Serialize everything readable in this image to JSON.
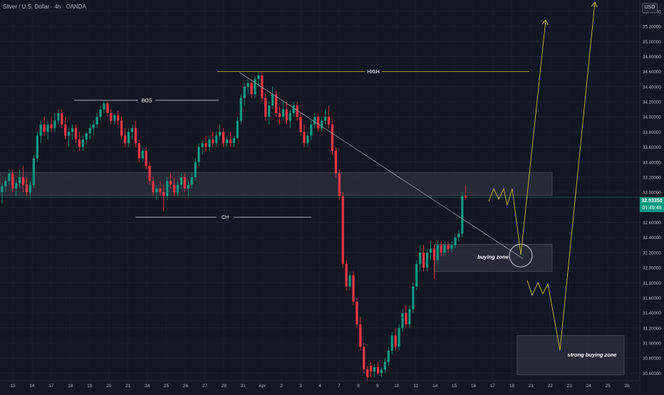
{
  "header": {
    "title": "Silver / U.S. Dollar · 4h · OANDA",
    "currency": "USD"
  },
  "price_tag": {
    "price": "32.93350",
    "countdown": "01:49:48"
  },
  "colors": {
    "background": "#131722",
    "up": "#089981",
    "down": "#f23645",
    "zone_fill": "#363a45",
    "annotation": "#c9b93a",
    "trendline": "#9598a1",
    "axis_text": "#b2b5be",
    "level_line": "#2a8a6f"
  },
  "chart_data": {
    "type": "candlestick",
    "title": "Silver / U.S. Dollar · 4h · OANDA",
    "x_ticks": [
      "13",
      "14",
      "17",
      "18",
      "19",
      "20",
      "21",
      "24",
      "25",
      "26",
      "27",
      "28",
      "31",
      "Apr",
      "2",
      "3",
      "4",
      "7",
      "8",
      "9",
      "10",
      "11",
      "14",
      "15",
      "16",
      "17",
      "18",
      "21",
      "22",
      "23",
      "24",
      "25",
      "28"
    ],
    "y_ticks": [
      "35.40000",
      "35.20000",
      "35.00000",
      "34.80000",
      "34.60000",
      "34.40000",
      "34.20000",
      "34.00000",
      "33.80000",
      "33.60000",
      "33.40000",
      "33.20000",
      "33.00000",
      "32.80000",
      "32.60000",
      "32.40000",
      "32.20000",
      "32.00000",
      "31.80000",
      "31.60000",
      "31.40000",
      "31.20000",
      "31.00000",
      "30.80000",
      "30.60000"
    ],
    "y_range": [
      30.5,
      35.55
    ],
    "current_price": 32.9335,
    "levels": [
      {
        "label": "HIGH",
        "price": 34.6
      },
      {
        "label": "BOS",
        "price": 34.22
      },
      {
        "label": "CH",
        "price": 32.67
      }
    ],
    "zones": [
      {
        "label": "",
        "top": 33.26,
        "bottom": 32.96
      },
      {
        "label": "buying zone",
        "top": 32.31,
        "bottom": 31.95
      },
      {
        "label": "strong buying zone",
        "top": 31.1,
        "bottom": 30.58
      }
    ],
    "candles": [
      {
        "o": 33.0,
        "h": 33.12,
        "l": 32.85,
        "c": 33.08
      },
      {
        "o": 33.08,
        "h": 33.2,
        "l": 33.0,
        "c": 33.15
      },
      {
        "o": 33.15,
        "h": 33.3,
        "l": 33.1,
        "c": 33.25
      },
      {
        "o": 33.25,
        "h": 33.3,
        "l": 33.0,
        "c": 33.05
      },
      {
        "o": 33.05,
        "h": 33.15,
        "l": 32.95,
        "c": 33.12
      },
      {
        "o": 33.12,
        "h": 33.3,
        "l": 33.05,
        "c": 33.2
      },
      {
        "o": 33.2,
        "h": 33.35,
        "l": 33.0,
        "c": 33.1
      },
      {
        "o": 33.1,
        "h": 33.2,
        "l": 32.95,
        "c": 33.0
      },
      {
        "o": 33.0,
        "h": 33.15,
        "l": 32.9,
        "c": 33.1
      },
      {
        "o": 33.1,
        "h": 33.5,
        "l": 33.05,
        "c": 33.45
      },
      {
        "o": 33.45,
        "h": 33.8,
        "l": 33.4,
        "c": 33.75
      },
      {
        "o": 33.75,
        "h": 33.95,
        "l": 33.65,
        "c": 33.9
      },
      {
        "o": 33.9,
        "h": 34.0,
        "l": 33.75,
        "c": 33.8
      },
      {
        "o": 33.8,
        "h": 33.95,
        "l": 33.7,
        "c": 33.9
      },
      {
        "o": 33.9,
        "h": 34.0,
        "l": 33.8,
        "c": 33.85
      },
      {
        "o": 33.85,
        "h": 34.05,
        "l": 33.8,
        "c": 33.95
      },
      {
        "o": 33.95,
        "h": 34.1,
        "l": 33.9,
        "c": 34.05
      },
      {
        "o": 34.05,
        "h": 34.1,
        "l": 33.85,
        "c": 33.9
      },
      {
        "o": 33.9,
        "h": 34.0,
        "l": 33.7,
        "c": 33.75
      },
      {
        "o": 33.75,
        "h": 33.85,
        "l": 33.6,
        "c": 33.8
      },
      {
        "o": 33.8,
        "h": 33.9,
        "l": 33.7,
        "c": 33.85
      },
      {
        "o": 33.85,
        "h": 33.9,
        "l": 33.65,
        "c": 33.7
      },
      {
        "o": 33.7,
        "h": 33.8,
        "l": 33.55,
        "c": 33.6
      },
      {
        "o": 33.6,
        "h": 33.75,
        "l": 33.55,
        "c": 33.7
      },
      {
        "o": 33.7,
        "h": 33.8,
        "l": 33.65,
        "c": 33.78
      },
      {
        "o": 33.78,
        "h": 33.9,
        "l": 33.7,
        "c": 33.85
      },
      {
        "o": 33.85,
        "h": 33.95,
        "l": 33.75,
        "c": 33.9
      },
      {
        "o": 33.9,
        "h": 34.05,
        "l": 33.85,
        "c": 34.0
      },
      {
        "o": 34.0,
        "h": 34.15,
        "l": 33.95,
        "c": 34.1
      },
      {
        "o": 34.1,
        "h": 34.22,
        "l": 34.05,
        "c": 34.18
      },
      {
        "o": 34.18,
        "h": 34.22,
        "l": 34.0,
        "c": 34.05
      },
      {
        "o": 34.05,
        "h": 34.1,
        "l": 33.9,
        "c": 33.95
      },
      {
        "o": 33.95,
        "h": 34.05,
        "l": 33.9,
        "c": 34.02
      },
      {
        "o": 34.02,
        "h": 34.08,
        "l": 33.9,
        "c": 33.95
      },
      {
        "o": 33.95,
        "h": 34.0,
        "l": 33.7,
        "c": 33.75
      },
      {
        "o": 33.75,
        "h": 33.85,
        "l": 33.6,
        "c": 33.65
      },
      {
        "o": 33.65,
        "h": 33.85,
        "l": 33.6,
        "c": 33.8
      },
      {
        "o": 33.8,
        "h": 33.9,
        "l": 33.7,
        "c": 33.85
      },
      {
        "o": 33.85,
        "h": 33.95,
        "l": 33.6,
        "c": 33.65
      },
      {
        "o": 33.65,
        "h": 33.7,
        "l": 33.4,
        "c": 33.45
      },
      {
        "o": 33.45,
        "h": 33.6,
        "l": 33.4,
        "c": 33.55
      },
      {
        "o": 33.55,
        "h": 33.6,
        "l": 33.3,
        "c": 33.35
      },
      {
        "o": 33.35,
        "h": 33.4,
        "l": 33.1,
        "c": 33.15
      },
      {
        "o": 33.15,
        "h": 33.2,
        "l": 32.95,
        "c": 33.0
      },
      {
        "o": 33.0,
        "h": 33.1,
        "l": 32.9,
        "c": 33.05
      },
      {
        "o": 33.05,
        "h": 33.15,
        "l": 32.95,
        "c": 33.0
      },
      {
        "o": 33.0,
        "h": 33.1,
        "l": 32.75,
        "c": 32.95
      },
      {
        "o": 32.95,
        "h": 33.2,
        "l": 32.9,
        "c": 33.15
      },
      {
        "o": 33.15,
        "h": 33.25,
        "l": 33.05,
        "c": 33.1
      },
      {
        "o": 33.1,
        "h": 33.2,
        "l": 32.95,
        "c": 33.0
      },
      {
        "o": 33.0,
        "h": 33.15,
        "l": 32.95,
        "c": 33.1
      },
      {
        "o": 33.1,
        "h": 33.25,
        "l": 33.05,
        "c": 33.2
      },
      {
        "o": 33.2,
        "h": 33.25,
        "l": 33.0,
        "c": 33.05
      },
      {
        "o": 33.05,
        "h": 33.15,
        "l": 32.95,
        "c": 33.1
      },
      {
        "o": 33.1,
        "h": 33.25,
        "l": 33.05,
        "c": 33.2
      },
      {
        "o": 33.2,
        "h": 33.45,
        "l": 33.15,
        "c": 33.4
      },
      {
        "o": 33.4,
        "h": 33.65,
        "l": 33.35,
        "c": 33.6
      },
      {
        "o": 33.6,
        "h": 33.7,
        "l": 33.5,
        "c": 33.65
      },
      {
        "o": 33.65,
        "h": 33.75,
        "l": 33.55,
        "c": 33.6
      },
      {
        "o": 33.6,
        "h": 33.75,
        "l": 33.55,
        "c": 33.7
      },
      {
        "o": 33.7,
        "h": 33.8,
        "l": 33.6,
        "c": 33.65
      },
      {
        "o": 33.65,
        "h": 33.8,
        "l": 33.6,
        "c": 33.75
      },
      {
        "o": 33.75,
        "h": 33.9,
        "l": 33.7,
        "c": 33.8
      },
      {
        "o": 33.8,
        "h": 33.85,
        "l": 33.6,
        "c": 33.65
      },
      {
        "o": 33.65,
        "h": 33.75,
        "l": 33.6,
        "c": 33.7
      },
      {
        "o": 33.7,
        "h": 33.8,
        "l": 33.6,
        "c": 33.65
      },
      {
        "o": 33.65,
        "h": 33.75,
        "l": 33.6,
        "c": 33.72
      },
      {
        "o": 33.72,
        "h": 34.0,
        "l": 33.7,
        "c": 33.95
      },
      {
        "o": 33.95,
        "h": 34.3,
        "l": 33.9,
        "c": 34.25
      },
      {
        "o": 34.25,
        "h": 34.45,
        "l": 34.15,
        "c": 34.4
      },
      {
        "o": 34.4,
        "h": 34.5,
        "l": 34.3,
        "c": 34.45
      },
      {
        "o": 34.45,
        "h": 34.5,
        "l": 34.25,
        "c": 34.3
      },
      {
        "o": 34.3,
        "h": 34.55,
        "l": 34.25,
        "c": 34.5
      },
      {
        "o": 34.5,
        "h": 34.6,
        "l": 34.4,
        "c": 34.55
      },
      {
        "o": 34.55,
        "h": 34.6,
        "l": 34.2,
        "c": 34.25
      },
      {
        "o": 34.25,
        "h": 34.3,
        "l": 33.95,
        "c": 34.0
      },
      {
        "o": 34.0,
        "h": 34.2,
        "l": 33.9,
        "c": 34.15
      },
      {
        "o": 34.15,
        "h": 34.4,
        "l": 34.1,
        "c": 34.3
      },
      {
        "o": 34.3,
        "h": 34.35,
        "l": 34.0,
        "c": 34.05
      },
      {
        "o": 34.05,
        "h": 34.15,
        "l": 33.9,
        "c": 34.0
      },
      {
        "o": 34.0,
        "h": 34.2,
        "l": 33.95,
        "c": 34.1
      },
      {
        "o": 34.1,
        "h": 34.2,
        "l": 33.9,
        "c": 33.95
      },
      {
        "o": 33.95,
        "h": 34.1,
        "l": 33.85,
        "c": 34.05
      },
      {
        "o": 34.05,
        "h": 34.2,
        "l": 34.0,
        "c": 34.15
      },
      {
        "o": 34.15,
        "h": 34.2,
        "l": 33.95,
        "c": 34.0
      },
      {
        "o": 34.0,
        "h": 34.05,
        "l": 33.75,
        "c": 33.8
      },
      {
        "o": 33.8,
        "h": 33.9,
        "l": 33.6,
        "c": 33.65
      },
      {
        "o": 33.65,
        "h": 33.8,
        "l": 33.6,
        "c": 33.75
      },
      {
        "o": 33.75,
        "h": 33.95,
        "l": 33.7,
        "c": 33.9
      },
      {
        "o": 33.9,
        "h": 34.05,
        "l": 33.85,
        "c": 34.0
      },
      {
        "o": 34.0,
        "h": 34.05,
        "l": 33.8,
        "c": 33.85
      },
      {
        "o": 33.85,
        "h": 34.0,
        "l": 33.8,
        "c": 33.95
      },
      {
        "o": 33.95,
        "h": 34.1,
        "l": 33.9,
        "c": 34.0
      },
      {
        "o": 34.0,
        "h": 34.15,
        "l": 33.85,
        "c": 33.9
      },
      {
        "o": 33.9,
        "h": 33.95,
        "l": 33.5,
        "c": 33.55
      },
      {
        "o": 33.55,
        "h": 33.6,
        "l": 33.2,
        "c": 33.25
      },
      {
        "o": 33.25,
        "h": 33.3,
        "l": 32.9,
        "c": 32.95
      },
      {
        "o": 32.95,
        "h": 33.0,
        "l": 32.0,
        "c": 32.05
      },
      {
        "o": 32.05,
        "h": 32.1,
        "l": 31.7,
        "c": 31.75
      },
      {
        "o": 31.75,
        "h": 31.95,
        "l": 31.7,
        "c": 31.9
      },
      {
        "o": 31.9,
        "h": 31.95,
        "l": 31.5,
        "c": 31.55
      },
      {
        "o": 31.55,
        "h": 31.6,
        "l": 31.2,
        "c": 31.25
      },
      {
        "o": 31.25,
        "h": 31.35,
        "l": 30.9,
        "c": 30.95
      },
      {
        "o": 30.95,
        "h": 31.0,
        "l": 30.6,
        "c": 30.65
      },
      {
        "o": 30.65,
        "h": 30.7,
        "l": 30.5,
        "c": 30.55
      },
      {
        "o": 30.7,
        "h": 30.75,
        "l": 30.55,
        "c": 30.62
      },
      {
        "o": 30.62,
        "h": 30.72,
        "l": 30.55,
        "c": 30.68
      },
      {
        "o": 30.68,
        "h": 30.75,
        "l": 30.58,
        "c": 30.6
      },
      {
        "o": 30.6,
        "h": 30.68,
        "l": 30.55,
        "c": 30.65
      },
      {
        "o": 30.65,
        "h": 30.8,
        "l": 30.6,
        "c": 30.75
      },
      {
        "o": 30.75,
        "h": 30.95,
        "l": 30.7,
        "c": 30.9
      },
      {
        "o": 30.9,
        "h": 31.15,
        "l": 30.85,
        "c": 31.1
      },
      {
        "o": 31.1,
        "h": 31.2,
        "l": 30.9,
        "c": 30.95
      },
      {
        "o": 30.95,
        "h": 31.25,
        "l": 30.9,
        "c": 31.2
      },
      {
        "o": 31.2,
        "h": 31.45,
        "l": 31.15,
        "c": 31.4
      },
      {
        "o": 31.4,
        "h": 31.5,
        "l": 31.2,
        "c": 31.25
      },
      {
        "o": 31.25,
        "h": 31.5,
        "l": 31.2,
        "c": 31.45
      },
      {
        "o": 31.45,
        "h": 31.8,
        "l": 31.4,
        "c": 31.75
      },
      {
        "o": 31.75,
        "h": 32.1,
        "l": 31.7,
        "c": 32.05
      },
      {
        "o": 32.05,
        "h": 32.3,
        "l": 31.95,
        "c": 32.2
      },
      {
        "o": 32.2,
        "h": 32.3,
        "l": 31.95,
        "c": 32.0
      },
      {
        "o": 32.0,
        "h": 32.25,
        "l": 31.95,
        "c": 32.2
      },
      {
        "o": 32.2,
        "h": 32.35,
        "l": 32.1,
        "c": 32.25
      },
      {
        "o": 32.25,
        "h": 32.3,
        "l": 31.85,
        "c": 32.1
      },
      {
        "o": 32.1,
        "h": 32.35,
        "l": 32.05,
        "c": 32.3
      },
      {
        "o": 32.3,
        "h": 32.35,
        "l": 32.15,
        "c": 32.2
      },
      {
        "o": 32.2,
        "h": 32.35,
        "l": 32.15,
        "c": 32.3
      },
      {
        "o": 32.3,
        "h": 32.35,
        "l": 32.2,
        "c": 32.25
      },
      {
        "o": 32.25,
        "h": 32.35,
        "l": 32.2,
        "c": 32.3
      },
      {
        "o": 32.3,
        "h": 32.45,
        "l": 32.25,
        "c": 32.4
      },
      {
        "o": 32.4,
        "h": 32.5,
        "l": 32.35,
        "c": 32.45
      },
      {
        "o": 32.45,
        "h": 33.0,
        "l": 32.4,
        "c": 32.95
      },
      {
        "o": 32.95,
        "h": 33.1,
        "l": 32.9,
        "c": 32.9335
      }
    ]
  }
}
